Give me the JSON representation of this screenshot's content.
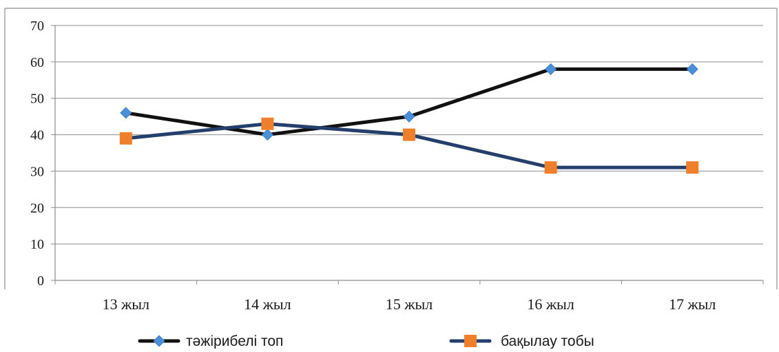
{
  "chart_data": {
    "type": "line",
    "categories": [
      "13 жыл",
      "14 жыл",
      "15 жыл",
      "16 жыл",
      "17 жыл"
    ],
    "series": [
      {
        "name": "тәжірибелі топ",
        "values": [
          46,
          40,
          45,
          58,
          58
        ],
        "line_color": "#111111",
        "marker": "diamond",
        "marker_color": "#4a90d9"
      },
      {
        "name": "бақылау тобы",
        "values": [
          39,
          43,
          40,
          31,
          31
        ],
        "line_color": "#243f6b",
        "marker": "square",
        "marker_color": "#f07f2c"
      }
    ],
    "y_ticks": [
      0,
      10,
      20,
      30,
      40,
      50,
      60,
      70
    ],
    "ylim": [
      0,
      70
    ],
    "grid": true,
    "legend_position": "bottom"
  }
}
